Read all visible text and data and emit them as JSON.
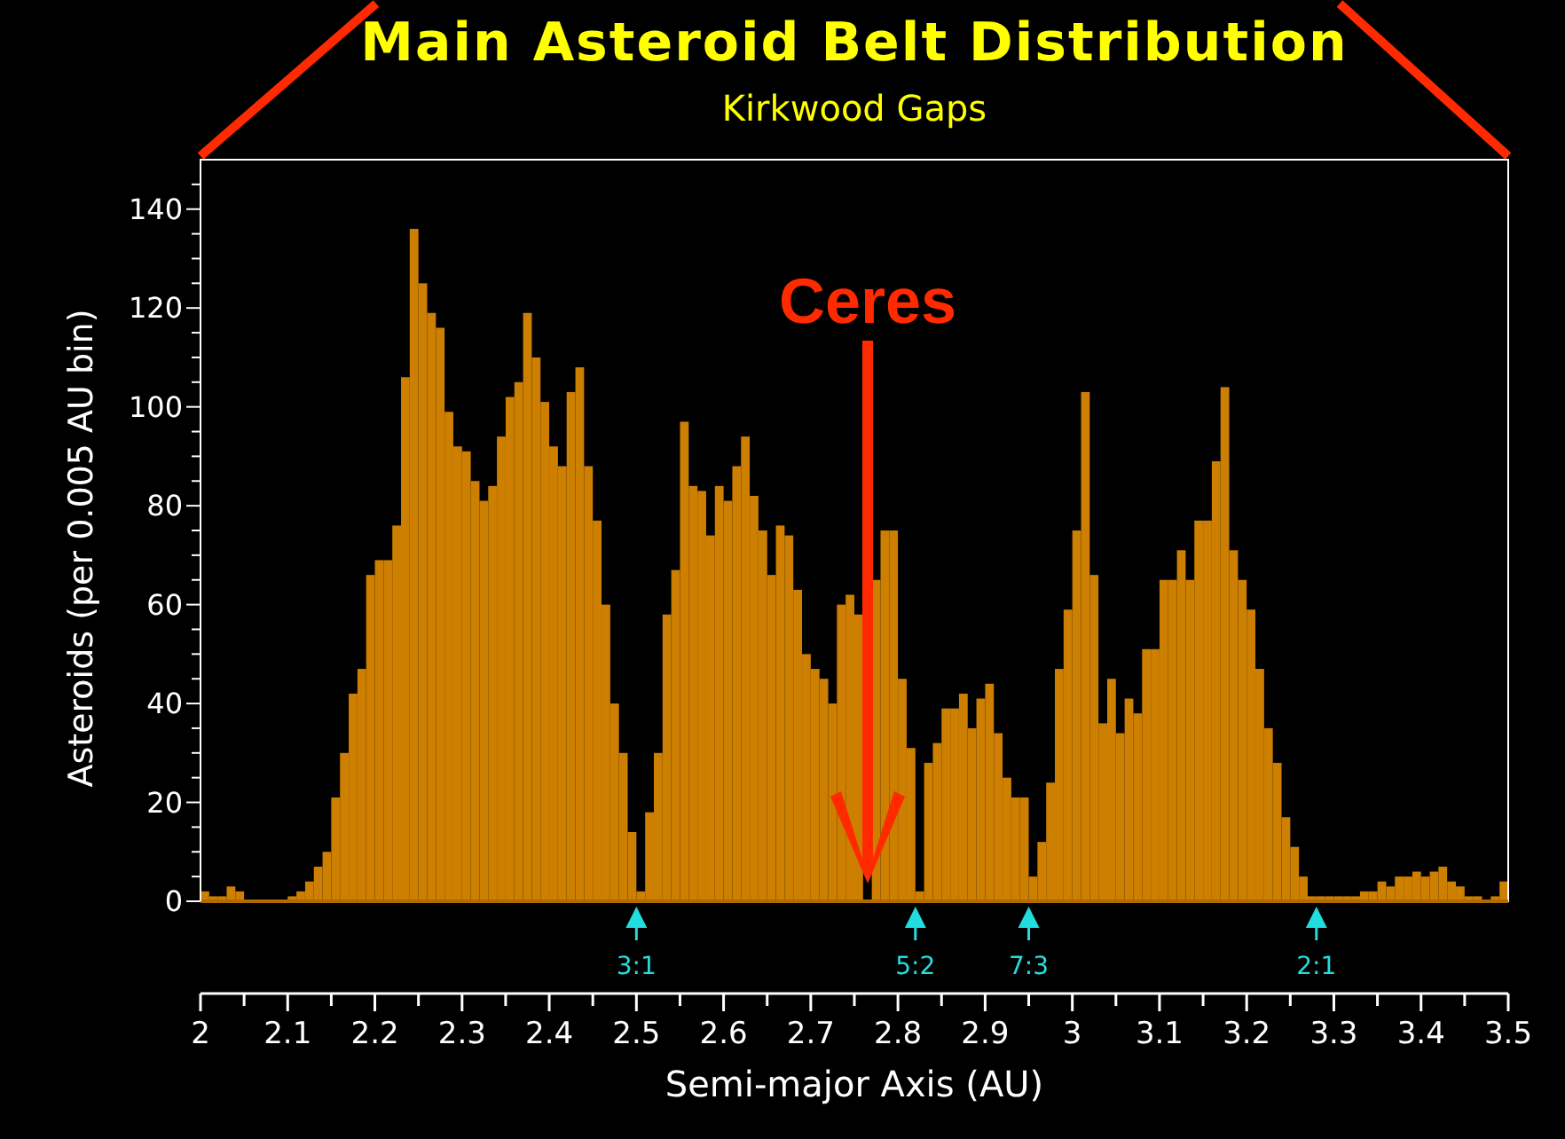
{
  "chart_data": {
    "type": "histogram",
    "title": "Main Asteroid Belt Distribution",
    "subtitle": "Kirkwood Gaps",
    "xlabel": "Semi-major Axis (AU)",
    "ylabel": "Asteroids (per 0.005 AU bin)",
    "color": "#cc7f00",
    "bins": [
      2,
      2.01,
      2.02,
      2.03,
      2.04,
      2.05,
      2.06,
      2.07,
      2.08,
      2.09,
      2.1,
      2.11,
      2.12,
      2.13,
      2.14,
      2.15,
      2.16,
      2.17,
      2.18,
      2.19,
      2.2,
      2.21,
      2.22,
      2.23,
      2.24,
      2.25,
      2.26,
      2.27,
      2.28,
      2.29,
      2.3,
      2.31,
      2.32,
      2.33,
      2.34,
      2.35,
      2.36,
      2.37,
      2.38,
      2.39,
      2.4,
      2.41,
      2.42,
      2.43,
      2.44,
      2.45,
      2.46,
      2.47,
      2.48,
      2.49,
      2.5,
      2.51,
      2.52,
      2.53,
      2.54,
      2.55,
      2.56,
      2.57,
      2.58,
      2.59,
      2.6,
      2.61,
      2.62,
      2.63,
      2.64,
      2.65,
      2.66,
      2.67,
      2.68,
      2.69,
      2.7,
      2.71,
      2.72,
      2.73,
      2.74,
      2.75,
      2.76,
      2.77,
      2.78,
      2.79,
      2.8,
      2.81,
      2.82,
      2.83,
      2.84,
      2.85,
      2.86,
      2.87,
      2.88,
      2.89,
      2.9,
      2.91,
      2.92,
      2.93,
      2.94,
      2.95,
      2.96,
      2.97,
      2.98,
      2.99,
      3,
      3.01,
      3.02,
      3.03,
      3.04,
      3.05,
      3.06,
      3.07,
      3.08,
      3.09,
      3.1,
      3.11,
      3.12,
      3.13,
      3.14,
      3.15,
      3.16,
      3.17,
      3.18,
      3.19,
      3.2,
      3.21,
      3.22,
      3.23,
      3.24,
      3.25,
      3.26,
      3.27,
      3.28,
      3.29,
      3.3,
      3.31,
      3.32,
      3.33,
      3.34,
      3.35,
      3.36,
      3.37,
      3.38,
      3.39,
      3.4,
      3.41,
      3.42,
      3.43,
      3.44,
      3.45,
      3.46,
      3.47,
      3.48,
      3.49,
      3.5
    ],
    "values": [
      2,
      1,
      1,
      3,
      2,
      0,
      0,
      0,
      0,
      0,
      1,
      2,
      4,
      7,
      10,
      21,
      30,
      42,
      47,
      66,
      69,
      69,
      76,
      106,
      136,
      125,
      119,
      116,
      99,
      92,
      91,
      85,
      81,
      84,
      94,
      102,
      105,
      119,
      110,
      101,
      92,
      88,
      103,
      108,
      88,
      77,
      60,
      40,
      30,
      14,
      2,
      18,
      30,
      58,
      67,
      97,
      84,
      83,
      74,
      84,
      81,
      88,
      94,
      82,
      75,
      66,
      76,
      74,
      63,
      50,
      47,
      45,
      40,
      60,
      62,
      58,
      null,
      65,
      75,
      75,
      45,
      31,
      2,
      28,
      32,
      39,
      39,
      42,
      35,
      41,
      44,
      34,
      25,
      21,
      21,
      5,
      12,
      24,
      47,
      59,
      75,
      103,
      66,
      36,
      45,
      34,
      41,
      38,
      51,
      51,
      65,
      65,
      71,
      65,
      77,
      77,
      89,
      104,
      71,
      65,
      59,
      47,
      35,
      28,
      17,
      11,
      5,
      1,
      1,
      1,
      1,
      1,
      1,
      2,
      2,
      4,
      3,
      5,
      5,
      6,
      5,
      6,
      7,
      4,
      3,
      1,
      1,
      0,
      1,
      4
    ],
    "xlim": [
      2,
      3.5
    ],
    "ylim": [
      0,
      150
    ],
    "xticks": [
      2,
      2.1,
      2.2,
      2.3,
      2.4,
      2.5,
      2.6,
      2.7,
      2.8,
      2.9,
      3,
      3.1,
      3.2,
      3.3,
      3.4,
      3.5
    ],
    "yticks": [
      0,
      {
        "value": 5,
        "label": null
      },
      {
        "value": 10,
        "label": null
      },
      {
        "value": 15,
        "label": null
      },
      20,
      {
        "value": 25,
        "label": null
      },
      {
        "value": 30,
        "label": null
      },
      {
        "value": 35,
        "label": null
      },
      40,
      {
        "value": 45,
        "label": null
      },
      {
        "value": 50,
        "label": null
      },
      {
        "value": 55,
        "label": null
      },
      60,
      {
        "value": 65,
        "label": null
      },
      {
        "value": 70,
        "label": null
      },
      {
        "value": 75,
        "label": null
      },
      80,
      {
        "value": 85,
        "label": null
      },
      {
        "value": 90,
        "label": null
      },
      {
        "value": 95,
        "label": null
      },
      100,
      {
        "value": 105,
        "label": null
      },
      {
        "value": 110,
        "label": null
      },
      {
        "value": 115,
        "label": null
      },
      120,
      {
        "value": 125,
        "label": null
      },
      {
        "value": 130,
        "label": null
      },
      {
        "value": 135,
        "label": null
      },
      140,
      {
        "value": 145,
        "label": null
      }
    ],
    "annotations": [
      "Ceres",
      {
        "text": "3:1",
        "x": 2.5,
        "y": 0
      },
      {
        "text": "5:2",
        "x": 2.82,
        "y": 0
      },
      {
        "text": "7:3",
        "x": 2.95,
        "y": 0
      },
      {
        "text": "2:1",
        "x": 3.28,
        "y": 0
      }
    ]
  }
}
